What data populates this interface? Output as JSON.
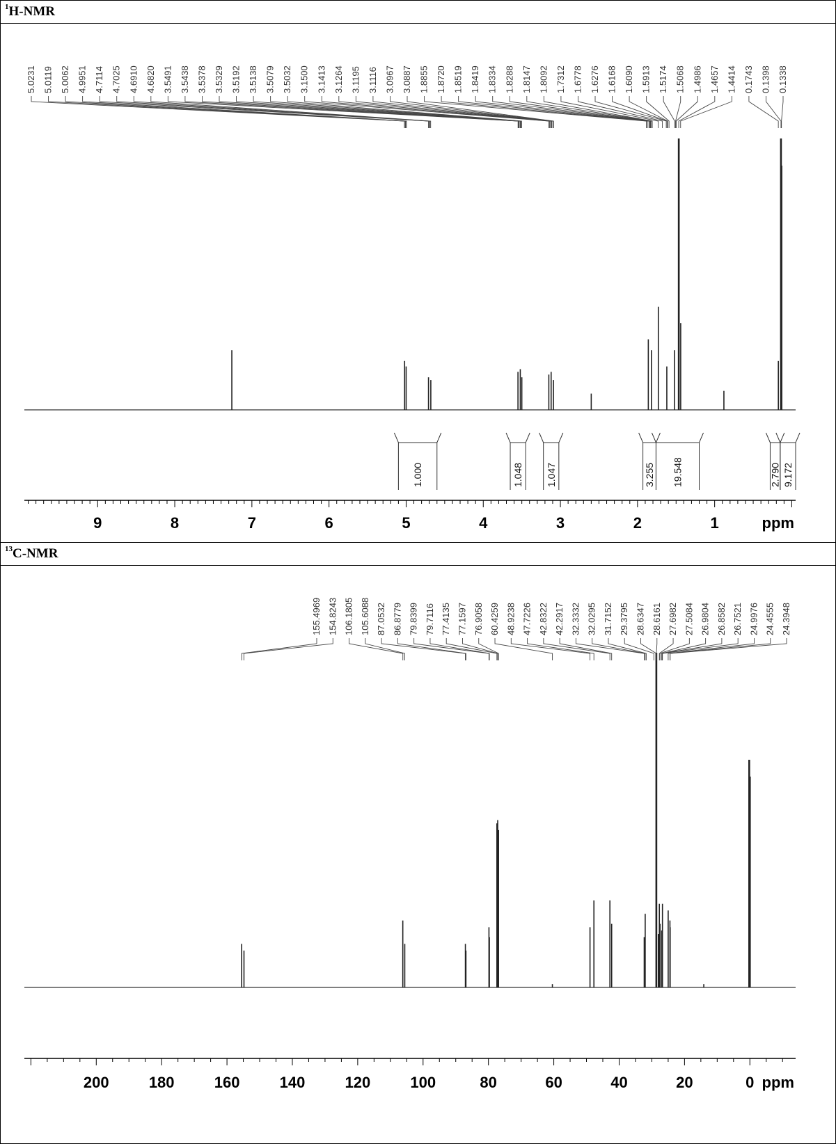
{
  "panels": [
    {
      "id": "h",
      "label_sup": "1",
      "label_main": "H-NMR",
      "chart_data": {
        "type": "line",
        "title": "",
        "xlabel": "ppm",
        "xlim": [
          9.95,
          -0.05
        ],
        "ticks": [
          9,
          8,
          7,
          6,
          5,
          4,
          3,
          2,
          1
        ],
        "axis_unit": "ppm",
        "peak_labels": [
          "5.0231",
          "5.0119",
          "5.0062",
          "4.9951",
          "4.7114",
          "4.7025",
          "4.6910",
          "4.6820",
          "3.5491",
          "3.5438",
          "3.5378",
          "3.5329",
          "3.5192",
          "3.5138",
          "3.5079",
          "3.5032",
          "3.1500",
          "3.1413",
          "3.1264",
          "3.1195",
          "3.1116",
          "3.0967",
          "3.0887",
          "1.8855",
          "1.8720",
          "1.8519",
          "1.8419",
          "1.8334",
          "1.8288",
          "1.8147",
          "1.8092",
          "1.7312",
          "1.6778",
          "1.6276",
          "1.6168",
          "1.6090",
          "1.5913",
          "1.5174",
          "1.5068",
          "1.4986",
          "1.4657",
          "1.4414",
          "0.1743",
          "0.1398",
          "0.1338"
        ],
        "peaks": [
          {
            "ppm": 7.26,
            "height": 0.22
          },
          {
            "ppm": 5.02,
            "height": 0.18
          },
          {
            "ppm": 5.0,
            "height": 0.16
          },
          {
            "ppm": 4.71,
            "height": 0.12
          },
          {
            "ppm": 4.68,
            "height": 0.11
          },
          {
            "ppm": 3.55,
            "height": 0.14
          },
          {
            "ppm": 3.52,
            "height": 0.15
          },
          {
            "ppm": 3.5,
            "height": 0.12
          },
          {
            "ppm": 3.15,
            "height": 0.13
          },
          {
            "ppm": 3.12,
            "height": 0.14
          },
          {
            "ppm": 3.09,
            "height": 0.11
          },
          {
            "ppm": 2.6,
            "height": 0.06
          },
          {
            "ppm": 1.86,
            "height": 0.26
          },
          {
            "ppm": 1.82,
            "height": 0.22
          },
          {
            "ppm": 1.73,
            "height": 0.38
          },
          {
            "ppm": 1.62,
            "height": 0.16
          },
          {
            "ppm": 1.52,
            "height": 0.22
          },
          {
            "ppm": 1.465,
            "height": 1.0
          },
          {
            "ppm": 1.44,
            "height": 0.32
          },
          {
            "ppm": 0.88,
            "height": 0.07
          },
          {
            "ppm": 0.174,
            "height": 0.18
          },
          {
            "ppm": 0.14,
            "height": 1.0
          },
          {
            "ppm": 0.134,
            "height": 0.9
          }
        ],
        "integrals": [
          {
            "from": 5.1,
            "to": 4.6,
            "label": "1.000"
          },
          {
            "from": 3.65,
            "to": 3.45,
            "label": "1.048"
          },
          {
            "from": 3.22,
            "to": 3.02,
            "label": "1.047"
          },
          {
            "from": 1.93,
            "to": 1.76,
            "label": "3.255"
          },
          {
            "from": 1.76,
            "to": 1.2,
            "label": "19.548"
          },
          {
            "from": 0.28,
            "to": 0.15,
            "label": "2.790"
          },
          {
            "from": 0.15,
            "to": -0.05,
            "label": "9.172"
          }
        ]
      }
    },
    {
      "id": "c",
      "label_sup": "13",
      "label_main": "C-NMR",
      "chart_data": {
        "type": "line",
        "title": "",
        "xlabel": "ppm",
        "xlim": [
          222,
          -14
        ],
        "ticks": [
          200,
          180,
          160,
          140,
          120,
          100,
          80,
          60,
          40,
          20,
          0
        ],
        "axis_unit": "ppm",
        "peak_labels": [
          "155.4969",
          "154.8243",
          "106.1805",
          "105.6088",
          "87.0532",
          "86.8779",
          "79.8399",
          "79.7116",
          "77.4135",
          "77.1597",
          "76.9058",
          "60.4259",
          "48.9238",
          "47.7226",
          "42.8322",
          "42.2917",
          "32.3332",
          "32.0295",
          "31.7152",
          "29.3795",
          "28.6347",
          "28.6161",
          "27.6982",
          "27.5084",
          "26.9804",
          "26.8582",
          "26.7521",
          "24.9976",
          "24.4555",
          "24.3948"
        ],
        "peaks": [
          {
            "ppm": 155.5,
            "height": 0.13
          },
          {
            "ppm": 154.8,
            "height": 0.11
          },
          {
            "ppm": 106.2,
            "height": 0.2
          },
          {
            "ppm": 105.6,
            "height": 0.13
          },
          {
            "ppm": 87.05,
            "height": 0.13
          },
          {
            "ppm": 86.88,
            "height": 0.11
          },
          {
            "ppm": 79.84,
            "height": 0.18
          },
          {
            "ppm": 79.71,
            "height": 0.15
          },
          {
            "ppm": 77.41,
            "height": 0.49
          },
          {
            "ppm": 77.16,
            "height": 0.5
          },
          {
            "ppm": 76.91,
            "height": 0.47
          },
          {
            "ppm": 60.43,
            "height": 0.01
          },
          {
            "ppm": 48.92,
            "height": 0.18
          },
          {
            "ppm": 47.72,
            "height": 0.26
          },
          {
            "ppm": 42.83,
            "height": 0.26
          },
          {
            "ppm": 42.29,
            "height": 0.19
          },
          {
            "ppm": 32.33,
            "height": 0.15
          },
          {
            "ppm": 32.03,
            "height": 0.22
          },
          {
            "ppm": 28.62,
            "height": 1.0
          },
          {
            "ppm": 28.0,
            "height": 0.16
          },
          {
            "ppm": 27.7,
            "height": 0.25
          },
          {
            "ppm": 27.5,
            "height": 0.19
          },
          {
            "ppm": 26.98,
            "height": 0.17
          },
          {
            "ppm": 26.75,
            "height": 0.25
          },
          {
            "ppm": 25.0,
            "height": 0.23
          },
          {
            "ppm": 24.46,
            "height": 0.2
          },
          {
            "ppm": 24.39,
            "height": 0.18
          },
          {
            "ppm": 14.1,
            "height": 0.01
          },
          {
            "ppm": 0.2,
            "height": 0.68
          },
          {
            "ppm": 0.0,
            "height": 0.63
          }
        ],
        "integrals": []
      }
    }
  ]
}
